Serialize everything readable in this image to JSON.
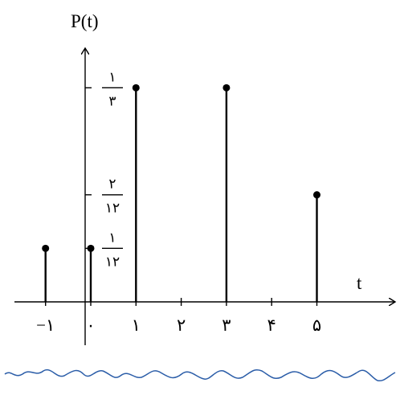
{
  "chart_data": {
    "type": "stem",
    "title": "P(t)",
    "xlabel": "t",
    "ylabel": "",
    "x_ticks": [
      {
        "value": -1,
        "label": "−۱"
      },
      {
        "value": 0,
        "label": "۰"
      },
      {
        "value": 1,
        "label": "۱"
      },
      {
        "value": 2,
        "label": "۲"
      },
      {
        "value": 3,
        "label": "۳"
      },
      {
        "value": 4,
        "label": "۴"
      },
      {
        "value": 5,
        "label": "۵"
      }
    ],
    "y_ticks": [
      {
        "value": 0.0833,
        "numerator": "۱",
        "denominator": "۱۲"
      },
      {
        "value": 0.1667,
        "numerator": "۲",
        "denominator": "۱۲"
      },
      {
        "value": 0.3333,
        "numerator": "۱",
        "denominator": "۳"
      }
    ],
    "points": [
      {
        "x": -1,
        "y": 0.0833
      },
      {
        "x": 0,
        "y": 0.0833
      },
      {
        "x": 1,
        "y": 0.3333
      },
      {
        "x": 3,
        "y": 0.3333
      },
      {
        "x": 5,
        "y": 0.1667
      }
    ],
    "xlim": [
      -1.5,
      6.1
    ],
    "ylim": [
      0,
      0.4
    ]
  },
  "colors": {
    "axis": "#000000",
    "stem": "#000000",
    "wave": "#2b5da8"
  }
}
